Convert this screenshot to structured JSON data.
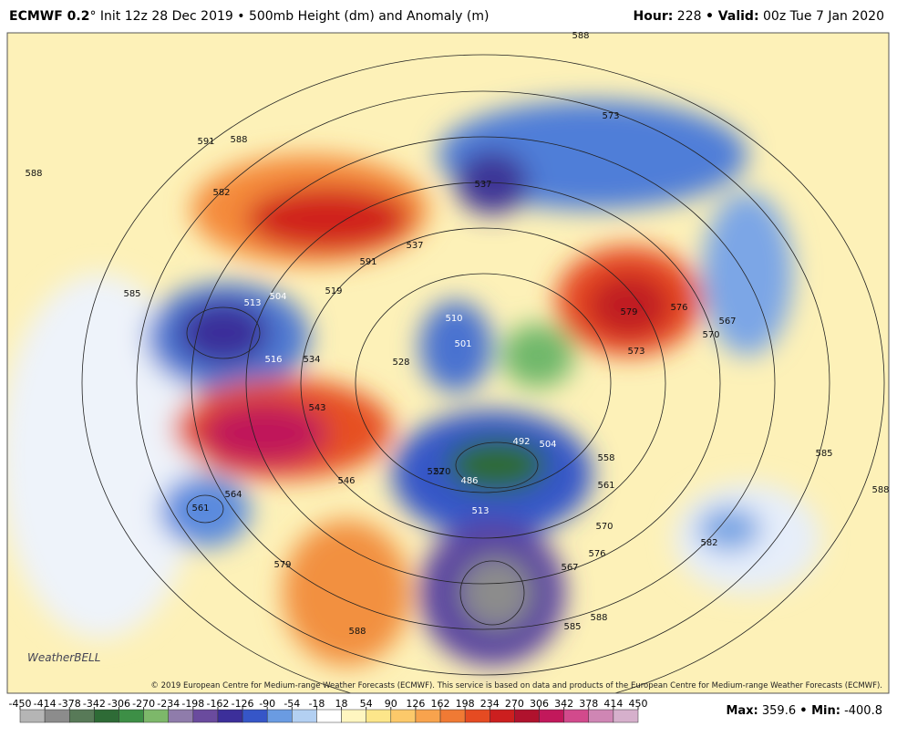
{
  "header": {
    "model": "ECMWF 0.2",
    "degree": "°",
    "description": "Init 12z 28 Dec 2019 • 500mb Height (dm) and Anomaly (m)",
    "hour_label": "Hour:",
    "hour": "228",
    "valid_label": "• Valid:",
    "valid": "00z Tue 7 Jan 2020"
  },
  "map": {
    "logo": "WeatherBELL",
    "copyright": "© 2019 European Centre for Medium-range Weather Forecasts (ECMWF). This service is based on data and products of the European Centre for Medium-range Weather Forecasts (ECMWF).",
    "contour_labels": [
      "588",
      "591",
      "588",
      "582",
      "585",
      "513",
      "504",
      "537",
      "591",
      "519",
      "543",
      "546",
      "564",
      "561",
      "579",
      "588",
      "573",
      "588",
      "537",
      "579",
      "576",
      "567",
      "570",
      "573",
      "558",
      "561",
      "570",
      "576",
      "567",
      "585",
      "588",
      "582",
      "585",
      "588",
      "513",
      "492",
      "504",
      "486",
      "501",
      "510",
      "528",
      "534",
      "516",
      "522",
      "570"
    ]
  },
  "colorbar": {
    "ticks": [
      -450,
      -414,
      -378,
      -342,
      -306,
      -270,
      -234,
      -198,
      -162,
      -126,
      -90,
      -54,
      -18,
      18,
      54,
      90,
      126,
      162,
      198,
      234,
      270,
      306,
      342,
      378,
      414,
      450
    ],
    "colors": [
      "#b5b5b5",
      "#8c8c8c",
      "#587a58",
      "#2e6b36",
      "#3d8f46",
      "#7db86a",
      "#8f7cab",
      "#6a4b9e",
      "#3c2f9a",
      "#3656c8",
      "#6a9be2",
      "#b3d0f2",
      "#ffffff",
      "#fff6c0",
      "#fde68a",
      "#fcc96a",
      "#f8a34d",
      "#f07a34",
      "#e54b22",
      "#cc1f1f",
      "#b0122d",
      "#c2185b",
      "#d24a8c",
      "#cf86b4",
      "#d6b0cc"
    ]
  },
  "stats": {
    "max_label": "Max:",
    "max": 359.6,
    "min_label": "• Min:",
    "min": -400.8
  }
}
